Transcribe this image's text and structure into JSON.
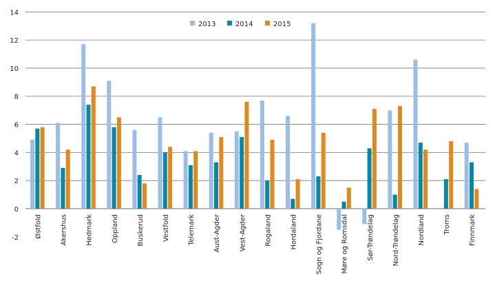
{
  "chart_data": {
    "type": "bar",
    "title": "",
    "xlabel": "",
    "ylabel": "",
    "ylim": [
      -2,
      14
    ],
    "yticks": [
      -2,
      0,
      2,
      4,
      6,
      8,
      10,
      12,
      14
    ],
    "grid": true,
    "legend_placement": "top-center",
    "categories": [
      "Østfold",
      "Akershus",
      "Hedmark",
      "Oppland",
      "Buskerud",
      "Vestfold",
      "Telemark",
      "Aust-Agder",
      "Vest-Agder",
      "Rogaland",
      "Hordaland",
      "Sogn og Fjordane",
      "Møre og Romsdal",
      "Sør-Trøndelag",
      "Nord-Trøndelag",
      "Nordland",
      "Troms",
      "Finnmark"
    ],
    "series": [
      {
        "name": "2013",
        "color": "#9dbde6",
        "values": [
          4.9,
          6.1,
          11.7,
          9.1,
          5.6,
          6.5,
          4.1,
          5.4,
          5.5,
          7.7,
          6.6,
          13.2,
          -1.5,
          -1.1,
          7.0,
          10.6,
          null,
          4.7
        ]
      },
      {
        "name": "2014",
        "color": "#0a88a3",
        "values": [
          5.7,
          2.9,
          7.4,
          5.8,
          2.4,
          4.0,
          3.1,
          3.3,
          5.1,
          2.0,
          0.7,
          2.3,
          0.5,
          4.3,
          1.0,
          4.7,
          2.1,
          3.3
        ]
      },
      {
        "name": "2015",
        "color": "#e08a1e",
        "values": [
          5.8,
          4.2,
          8.7,
          6.5,
          1.8,
          4.4,
          4.1,
          5.1,
          7.6,
          4.9,
          2.1,
          5.4,
          1.5,
          7.1,
          7.3,
          4.2,
          4.8,
          1.4
        ]
      }
    ]
  }
}
